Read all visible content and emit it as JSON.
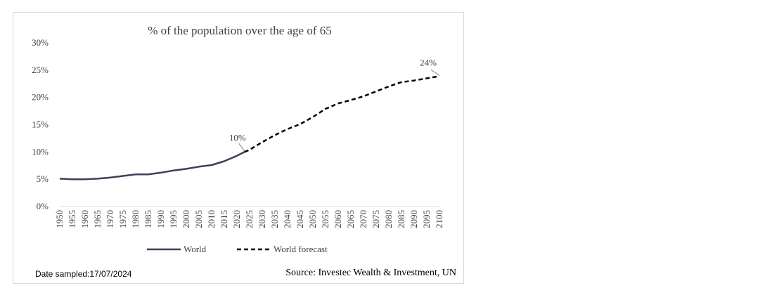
{
  "chart_data": {
    "type": "line",
    "title": "% of the population over the age of 65",
    "x": [
      1950,
      1955,
      1960,
      1965,
      1970,
      1975,
      1980,
      1985,
      1990,
      1995,
      2000,
      2005,
      2010,
      2015,
      2020,
      2025,
      2030,
      2035,
      2040,
      2045,
      2050,
      2055,
      2060,
      2065,
      2070,
      2075,
      2080,
      2085,
      2090,
      2095,
      2100
    ],
    "x_tick_labels": [
      "1950",
      "1955",
      "1960",
      "1965",
      "1970",
      "1975",
      "1980",
      "1985",
      "1990",
      "1995",
      "2000",
      "2005",
      "2010",
      "2015",
      "2020",
      "2025",
      "2030",
      "2035",
      "2040",
      "2045",
      "2050",
      "2055",
      "2060",
      "2065",
      "2070",
      "2075",
      "2080",
      "2085",
      "2090",
      "2095",
      "2100"
    ],
    "ylim": [
      0,
      30
    ],
    "y_ticks": [
      0,
      5,
      10,
      15,
      20,
      25,
      30
    ],
    "y_tick_labels": [
      "0%",
      "5%",
      "10%",
      "15%",
      "20%",
      "25%",
      "30%"
    ],
    "series": [
      {
        "name": "World",
        "style": "solid",
        "color": "#3b4257",
        "x": [
          1950,
          1955,
          1960,
          1965,
          1970,
          1975,
          1980,
          1985,
          1990,
          1995,
          2000,
          2005,
          2010,
          2015,
          2020,
          2023
        ],
        "values": [
          5.1,
          5.0,
          5.0,
          5.1,
          5.3,
          5.6,
          5.9,
          5.9,
          6.2,
          6.6,
          6.9,
          7.3,
          7.6,
          8.3,
          9.3,
          10.0
        ]
      },
      {
        "name": "World forecast",
        "style": "dashed",
        "color": "#000000",
        "x": [
          2023,
          2025,
          2030,
          2035,
          2040,
          2045,
          2050,
          2055,
          2060,
          2065,
          2070,
          2075,
          2080,
          2085,
          2090,
          2095,
          2100
        ],
        "values": [
          10.0,
          10.4,
          11.8,
          13.1,
          14.2,
          15.1,
          16.4,
          17.9,
          18.9,
          19.5,
          20.2,
          21.1,
          22.0,
          22.8,
          23.1,
          23.5,
          23.9
        ]
      }
    ],
    "annotations": [
      {
        "text": "10%",
        "x": 2023,
        "y": 10.0
      },
      {
        "text": "24%",
        "x": 2100,
        "y": 23.9
      }
    ],
    "legend": {
      "position": "bottom",
      "entries": [
        "World",
        "World forecast"
      ]
    }
  },
  "footer": {
    "date": "Date sampled:17/07/2024",
    "source": "Source: Investec Wealth & Investment, UN"
  }
}
